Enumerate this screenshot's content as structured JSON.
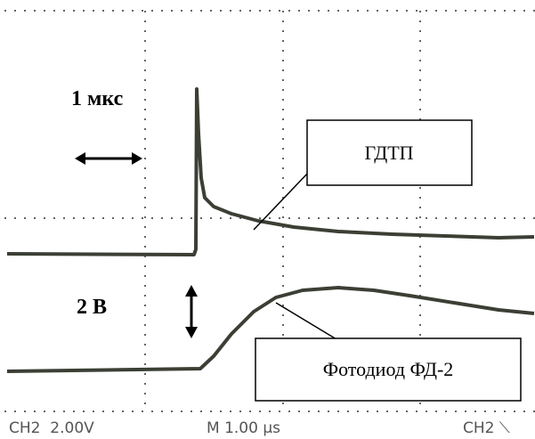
{
  "annotations": {
    "time_scale": "1 мкс",
    "voltage_scale": "2 В",
    "trace_upper": "ГДТП",
    "trace_lower": "Фотодиод ФД-2"
  },
  "status_bar": {
    "channel_volts": "CH2  2.00V",
    "timebase": "M 1.00 µs",
    "trigger": "CH2 ⟍"
  }
}
